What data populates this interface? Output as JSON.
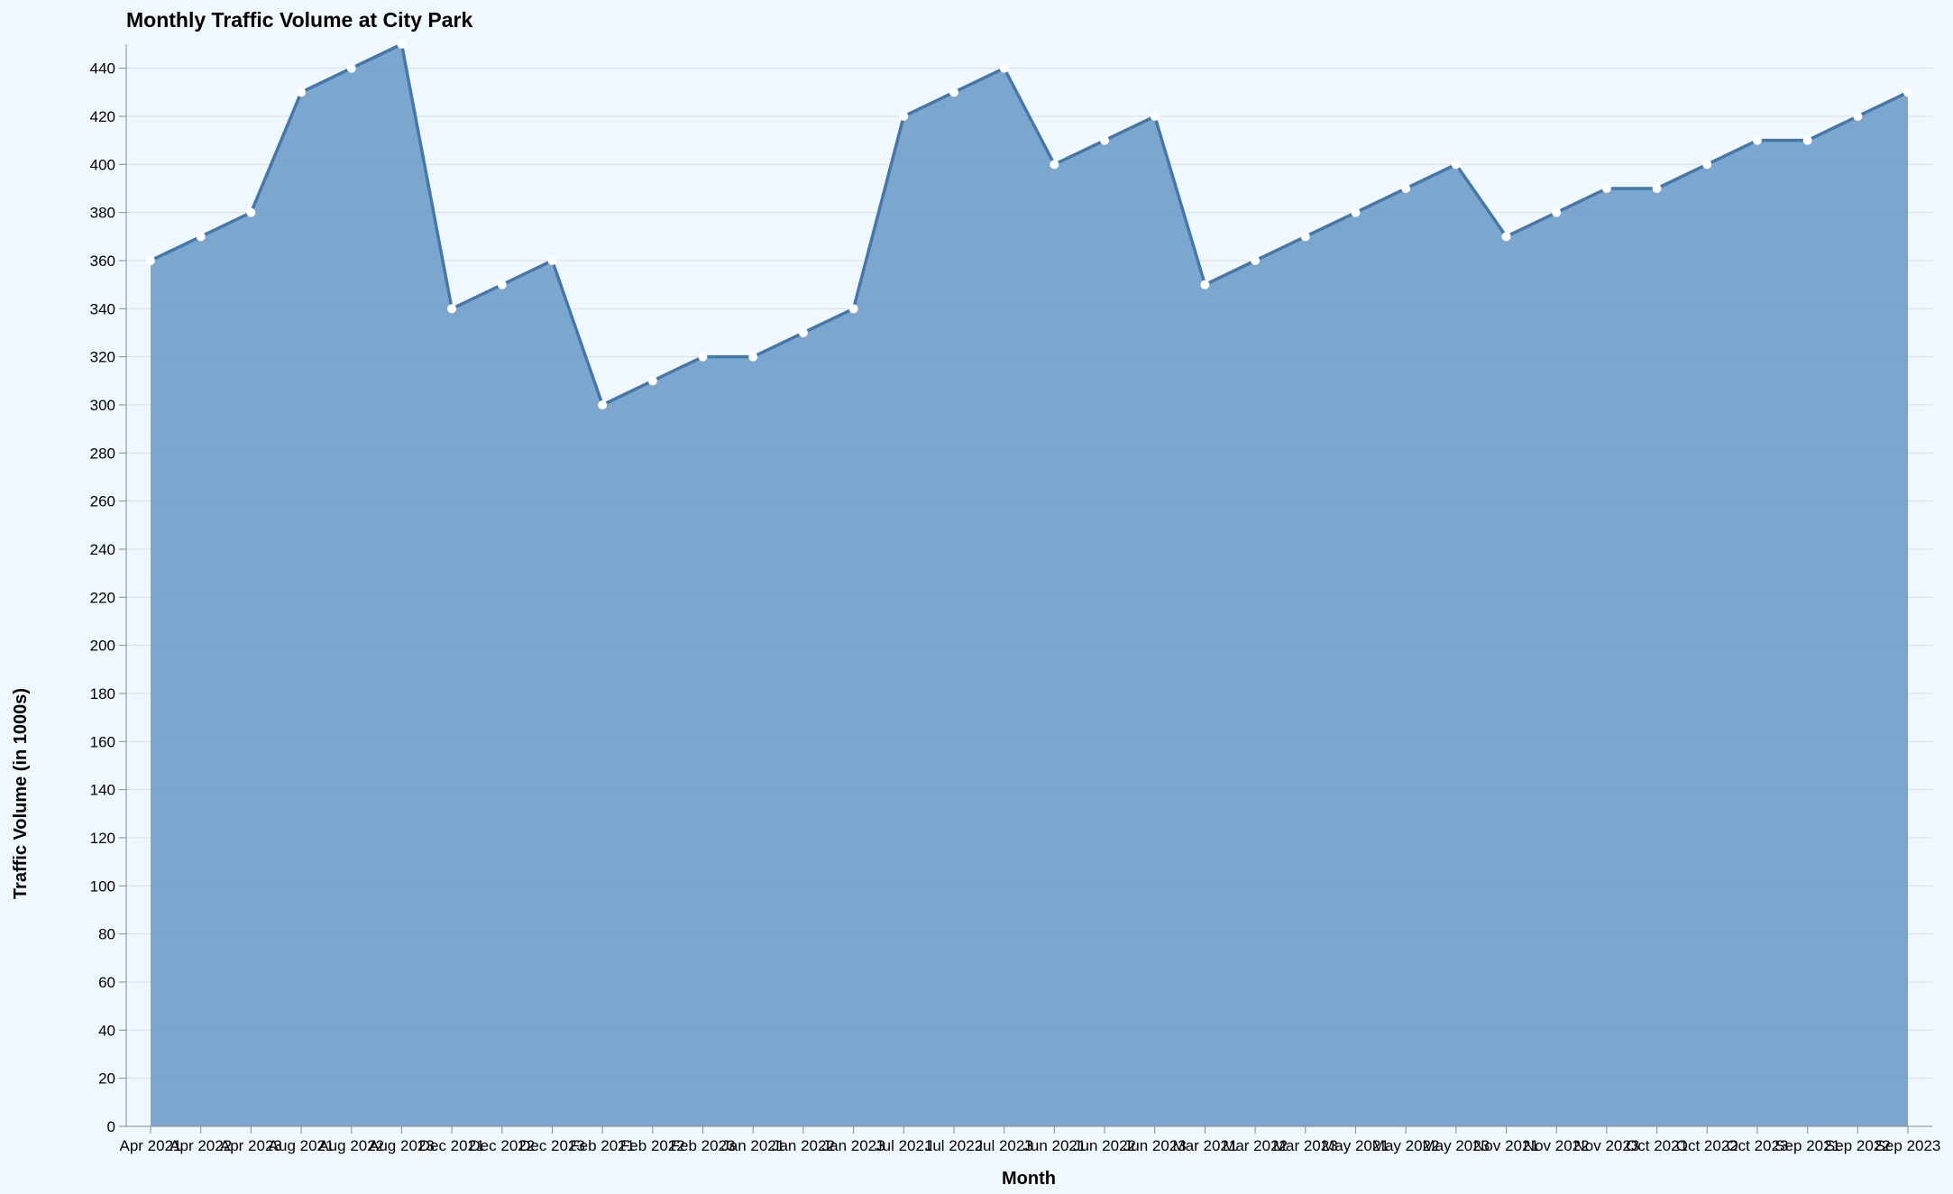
{
  "chart_data": {
    "type": "area",
    "title": "Monthly Traffic Volume at City Park",
    "xlabel": "Month",
    "ylabel": "Traffic Volume (in 1000s)",
    "ylim": [
      0,
      450
    ],
    "y_ticks": [
      0,
      20,
      40,
      60,
      80,
      100,
      120,
      140,
      160,
      180,
      200,
      220,
      240,
      260,
      280,
      300,
      320,
      340,
      360,
      380,
      400,
      420,
      440
    ],
    "grid": true,
    "legend": "none",
    "colors": {
      "background": "#f0f8ff",
      "area_fill": "#6a9bc7",
      "line": "#4477aa",
      "point_fill": "#ffffff",
      "grid": "#dcdcdc",
      "axis": "#888888",
      "text": "#000000"
    },
    "categories": [
      "Apr 2021",
      "Apr 2022",
      "Apr 2023",
      "Aug 2021",
      "Aug 2022",
      "Aug 2023",
      "Dec 2021",
      "Dec 2022",
      "Dec 2023",
      "Feb 2021",
      "Feb 2022",
      "Feb 2023",
      "Jan 2021",
      "Jan 2022",
      "Jan 2023",
      "Jul 2021",
      "Jul 2022",
      "Jul 2023",
      "Jun 2021",
      "Jun 2022",
      "Jun 2023",
      "Mar 2021",
      "Mar 2022",
      "Mar 2023",
      "May 2021",
      "May 2022",
      "May 2023",
      "Nov 2021",
      "Nov 2022",
      "Nov 2023",
      "Oct 2021",
      "Oct 2022",
      "Oct 2023",
      "Sep 2021",
      "Sep 2022",
      "Sep 2023"
    ],
    "values": [
      360,
      370,
      380,
      430,
      440,
      450,
      340,
      350,
      360,
      300,
      310,
      320,
      320,
      330,
      340,
      420,
      430,
      440,
      400,
      410,
      420,
      350,
      360,
      370,
      380,
      390,
      400,
      370,
      380,
      390,
      390,
      400,
      410,
      410,
      420,
      430
    ]
  }
}
